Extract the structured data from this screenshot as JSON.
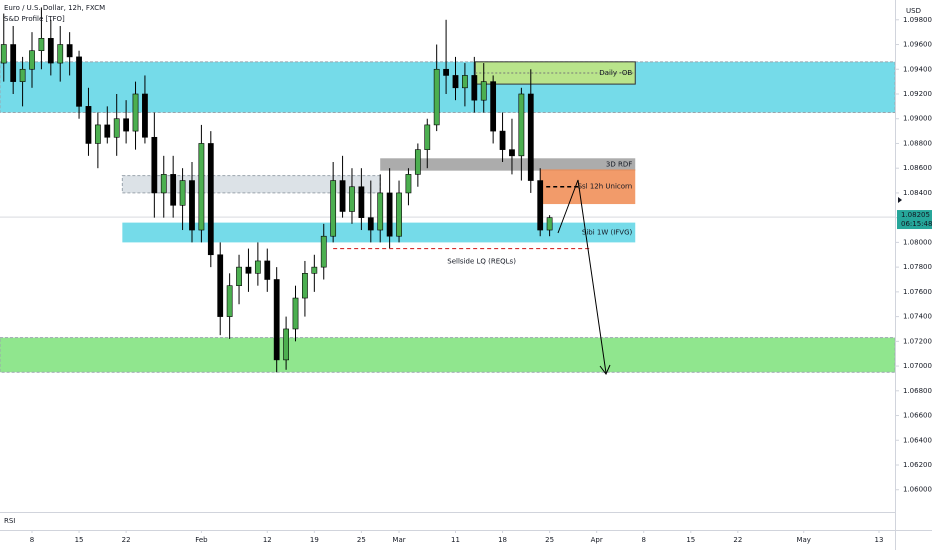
{
  "chart_data": {
    "type": "candlestick",
    "title": "Euro / U.S. Dollar, 12h, FXCM",
    "subtitle": "S&D Profile [TFO]",
    "currency": "USD",
    "pane_label": "RSI",
    "up_color": "#4caf50",
    "down_color": "#000000",
    "x": [
      -3,
      -2,
      -1,
      0,
      1,
      2,
      3,
      4,
      5,
      6,
      7,
      8,
      9,
      10,
      11,
      12,
      13,
      14,
      15,
      16,
      17,
      18,
      19,
      20,
      21,
      22,
      23,
      24,
      25,
      26,
      27,
      28,
      29,
      30,
      31,
      32,
      33,
      34,
      35,
      36,
      37,
      38,
      39,
      40,
      41,
      42,
      43,
      44,
      45,
      46,
      47,
      48,
      49,
      50,
      51,
      52,
      53,
      54,
      55
    ],
    "open": [
      1.0945,
      1.096,
      1.093,
      1.094,
      1.0955,
      1.0965,
      1.0945,
      1.096,
      1.095,
      1.091,
      1.088,
      1.0895,
      1.0885,
      1.09,
      1.089,
      1.092,
      1.0885,
      1.084,
      1.0855,
      1.083,
      1.085,
      1.081,
      1.088,
      1.079,
      1.074,
      1.0765,
      1.078,
      1.0775,
      1.0785,
      1.077,
      1.0705,
      1.073,
      1.0755,
      1.0775,
      1.078,
      1.0805,
      1.085,
      1.0825,
      1.0845,
      1.082,
      1.081,
      1.084,
      1.0805,
      1.084,
      1.0855,
      1.0875,
      1.0895,
      1.094,
      1.0935,
      1.0925,
      1.0935,
      1.0915,
      1.093,
      1.089,
      1.0875,
      1.087,
      1.092,
      1.085,
      1.081
    ],
    "high": [
      1.0985,
      1.0975,
      1.095,
      1.097,
      1.099,
      1.098,
      1.0975,
      1.097,
      1.0955,
      1.0925,
      1.0905,
      1.091,
      1.092,
      1.0915,
      1.093,
      1.0935,
      1.0905,
      1.087,
      1.087,
      1.086,
      1.0865,
      1.0895,
      1.089,
      1.08,
      1.0775,
      1.079,
      1.0795,
      1.08,
      1.0795,
      1.078,
      1.074,
      1.0765,
      1.0785,
      1.079,
      1.0815,
      1.0865,
      1.087,
      1.086,
      1.086,
      1.085,
      1.0855,
      1.086,
      1.085,
      1.086,
      1.088,
      1.09,
      1.096,
      1.098,
      1.095,
      1.0945,
      1.095,
      1.0945,
      1.0935,
      1.0905,
      1.09,
      1.0925,
      1.094,
      1.086,
      1.0822
    ],
    "low": [
      1.093,
      1.092,
      1.091,
      1.0925,
      1.094,
      1.0935,
      1.093,
      1.0935,
      1.09,
      1.087,
      1.086,
      1.088,
      1.087,
      1.088,
      1.0875,
      1.088,
      1.082,
      1.082,
      1.082,
      1.081,
      1.08,
      1.08,
      1.078,
      1.0725,
      1.0722,
      1.075,
      1.076,
      1.0765,
      1.076,
      1.0695,
      1.0697,
      1.072,
      1.074,
      1.076,
      1.077,
      1.08,
      1.082,
      1.0815,
      1.081,
      1.08,
      1.08,
      1.0795,
      1.08,
      1.083,
      1.0845,
      1.086,
      1.089,
      1.092,
      1.0915,
      1.091,
      1.0905,
      1.0905,
      1.088,
      1.0865,
      1.0855,
      1.085,
      1.084,
      1.0805,
      1.0805
    ],
    "close": [
      1.096,
      1.093,
      1.094,
      1.0955,
      1.0965,
      1.0945,
      1.096,
      1.095,
      1.091,
      1.088,
      1.0895,
      1.0885,
      1.09,
      1.089,
      1.092,
      1.0885,
      1.084,
      1.0855,
      1.083,
      1.085,
      1.081,
      1.088,
      1.079,
      1.074,
      1.0765,
      1.078,
      1.0775,
      1.0785,
      1.077,
      1.0705,
      1.073,
      1.0755,
      1.0775,
      1.078,
      1.0805,
      1.085,
      1.0825,
      1.0845,
      1.082,
      1.081,
      1.084,
      1.0805,
      1.084,
      1.0855,
      1.0875,
      1.0895,
      1.094,
      1.0935,
      1.0925,
      1.0935,
      1.0915,
      1.093,
      1.089,
      1.0875,
      1.087,
      1.092,
      1.085,
      1.081,
      1.082
    ],
    "xlim": [
      -3.4,
      91.7
    ],
    "xticks": [
      {
        "value": 0,
        "label": "8"
      },
      {
        "value": 5,
        "label": "15"
      },
      {
        "value": 10,
        "label": "22"
      },
      {
        "value": 18,
        "label": "Feb"
      },
      {
        "value": 25,
        "label": "12"
      },
      {
        "value": 30,
        "label": "19"
      },
      {
        "value": 35,
        "label": "25"
      },
      {
        "value": 39,
        "label": "Mar"
      },
      {
        "value": 45,
        "label": "11"
      },
      {
        "value": 50,
        "label": "18"
      },
      {
        "value": 55,
        "label": "25"
      },
      {
        "value": 60,
        "label": "Apr"
      },
      {
        "value": 65,
        "label": "8"
      },
      {
        "value": 70,
        "label": "15"
      },
      {
        "value": 75,
        "label": "22"
      },
      {
        "value": 82,
        "label": "May"
      },
      {
        "value": 90,
        "label": "13"
      }
    ],
    "ylim": [
      1.0582,
      1.0996
    ],
    "yticks": [
      {
        "value": 1.06,
        "label": "1.06000"
      },
      {
        "value": 1.062,
        "label": "1.06200"
      },
      {
        "value": 1.064,
        "label": "1.06400"
      },
      {
        "value": 1.066,
        "label": "1.06600"
      },
      {
        "value": 1.068,
        "label": "1.06800"
      },
      {
        "value": 1.07,
        "label": "1.07000"
      },
      {
        "value": 1.072,
        "label": "1.07200"
      },
      {
        "value": 1.074,
        "label": "1.07400"
      },
      {
        "value": 1.076,
        "label": "1.07600"
      },
      {
        "value": 1.078,
        "label": "1.07800"
      },
      {
        "value": 1.08,
        "label": "1.08000"
      },
      {
        "value": 1.082,
        "label": "1.08200"
      },
      {
        "value": 1.084,
        "label": "1.08400"
      },
      {
        "value": 1.086,
        "label": "1.08600"
      },
      {
        "value": 1.088,
        "label": "1.08800"
      },
      {
        "value": 1.09,
        "label": "1.09000"
      },
      {
        "value": 1.092,
        "label": "1.09200"
      },
      {
        "value": 1.094,
        "label": "1.09400"
      },
      {
        "value": 1.096,
        "label": "1.09600"
      },
      {
        "value": 1.098,
        "label": "1.09800"
      }
    ],
    "last_price": 1.08205,
    "countdown": "06:15:48",
    "zones": [
      {
        "top": 1.0946,
        "bottom": 1.0905,
        "x0": -3.4,
        "x1": 91.7,
        "color": "#5dd5e5"
      },
      {
        "top": 1.0723,
        "bottom": 1.0695,
        "x0": -3.4,
        "x1": 91.7,
        "color": "#7ce27a"
      },
      {
        "label": "Daily -OB",
        "top": 1.0946,
        "bottom": 1.0928,
        "x0": 47.1,
        "x1": 64.1,
        "color": "#c5e57a"
      },
      {
        "label": "3D RDF",
        "top": 1.0868,
        "bottom": 1.0858,
        "x0": 37,
        "x1": 64.1,
        "color": "#9e9e9e"
      },
      {
        "top": 1.0854,
        "bottom": 1.084,
        "x0": 9.6,
        "x1": 37,
        "color": "#d6dde3"
      },
      {
        "label": "Ssl 12h Unicorn",
        "top": 1.0859,
        "bottom": 1.0831,
        "x0": 54,
        "x1": 64.1,
        "color": "#f08a50"
      },
      {
        "label": "Sibi 1W (IFVG)",
        "top": 1.0816,
        "bottom": 1.08,
        "x0": 9.6,
        "x1": 64.1,
        "color": "#5dd5e5"
      }
    ],
    "levels": [
      {
        "label": "Sellside LQ (REQLs)",
        "value": 1.0795,
        "x0": 32,
        "x1": 59.3,
        "color": "#d32f2f"
      }
    ]
  }
}
